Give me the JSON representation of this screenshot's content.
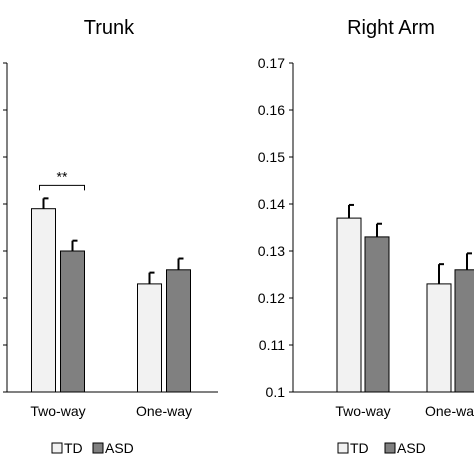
{
  "legend": {
    "entries": [
      {
        "label": "TD",
        "color": "#f2f2f2"
      },
      {
        "label": "ASD",
        "color": "#808080"
      }
    ]
  },
  "chart_data": [
    {
      "type": "bar",
      "title": "Trunk",
      "categories": [
        "Two-way",
        "One-way"
      ],
      "series": [
        {
          "name": "TD",
          "values": [
            0.139,
            0.123
          ],
          "errors": [
            0.0022,
            0.0024
          ],
          "color": "#f2f2f2"
        },
        {
          "name": "ASD",
          "values": [
            0.13,
            0.126
          ],
          "errors": [
            0.0022,
            0.0024
          ],
          "color": "#808080"
        }
      ],
      "ylim": [
        0.1,
        0.17
      ],
      "yticks": [],
      "annotations": [
        {
          "text": "**",
          "between": [
            "Two-way TD",
            "Two-way ASD"
          ]
        }
      ],
      "xlabel": "",
      "ylabel": ""
    },
    {
      "type": "bar",
      "title": "Right Arm",
      "categories": [
        "Two-way",
        "One-way"
      ],
      "series": [
        {
          "name": "TD",
          "values": [
            0.137,
            0.123
          ],
          "errors": [
            0.0028,
            0.0042
          ],
          "color": "#f2f2f2"
        },
        {
          "name": "ASD",
          "values": [
            0.133,
            0.126
          ],
          "errors": [
            0.0028,
            0.0035
          ],
          "color": "#808080"
        }
      ],
      "ylim": [
        0.1,
        0.17
      ],
      "yticks": [
        "0.1",
        "0.11",
        "0.12",
        "0.13",
        "0.14",
        "0.15",
        "0.16",
        "0.17"
      ],
      "annotations": [],
      "xlabel": "",
      "ylabel": ""
    }
  ]
}
